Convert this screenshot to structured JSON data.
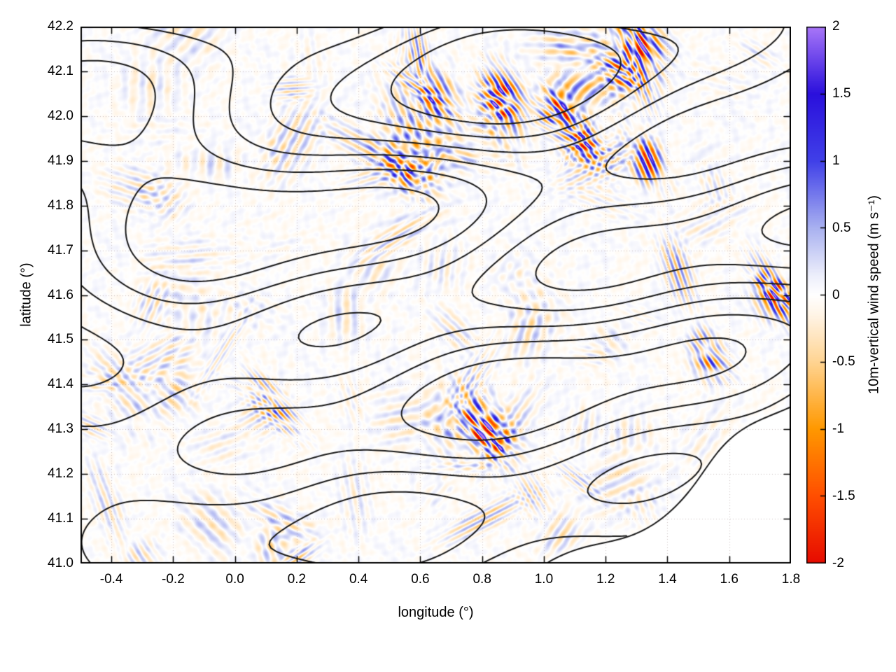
{
  "figure": {
    "background": "#ffffff"
  },
  "chart_data": {
    "type": "heatmap",
    "title": "",
    "xlabel": "longitude (°)",
    "ylabel": "latitude (°)",
    "xlim": [
      -0.5,
      1.8
    ],
    "ylim": [
      41.0,
      42.2
    ],
    "xtick_values": [
      -0.4,
      -0.2,
      0.0,
      0.2,
      0.4,
      0.6,
      0.8,
      1.0,
      1.2,
      1.4,
      1.6,
      1.8
    ],
    "xtick_labels": [
      "-0.4",
      "-0.2",
      "0.0",
      "0.2",
      "0.4",
      "0.6",
      "0.8",
      "1.0",
      "1.2",
      "1.4",
      "1.6",
      "1.8"
    ],
    "ytick_values": [
      41.0,
      41.1,
      41.2,
      41.3,
      41.4,
      41.5,
      41.6,
      41.7,
      41.8,
      41.9,
      42.0,
      42.1,
      42.2
    ],
    "ytick_labels": [
      "41.0",
      "41.1",
      "41.2",
      "41.3",
      "41.4",
      "41.5",
      "41.6",
      "41.7",
      "41.8",
      "41.9",
      "42.0",
      "42.1",
      "42.2"
    ],
    "grid": {
      "style": "dotted",
      "color": "#b9a4a4"
    },
    "contours": {
      "color": "#1a1a1a",
      "description": "black terrain/orography contour lines overlaid on shaded field"
    },
    "sea_region": {
      "location": "bottom-right",
      "color": "#ffffff",
      "description": "blank white area beyond the coastline contour"
    },
    "colorbar": {
      "label": "10m-vertical wind speed (m s⁻¹)",
      "min": -2,
      "max": 2,
      "tick_values": [
        2,
        1.5,
        1,
        0.5,
        0,
        -0.5,
        -1,
        -1.5,
        -2
      ],
      "tick_labels": [
        "2",
        "1.5",
        "1",
        "0.5",
        "0",
        "-0.5",
        "-1",
        "-1.5",
        "-2"
      ],
      "stops": [
        {
          "v": -2.0,
          "c": "#e60b00"
        },
        {
          "v": -1.5,
          "c": "#ff4e00"
        },
        {
          "v": -1.0,
          "c": "#ff9800"
        },
        {
          "v": -0.5,
          "c": "#ffd492"
        },
        {
          "v": -0.15,
          "c": "#fff4e6"
        },
        {
          "v": 0.0,
          "c": "#ffffff"
        },
        {
          "v": 0.15,
          "c": "#eceefb"
        },
        {
          "v": 0.5,
          "c": "#a9b1f0"
        },
        {
          "v": 1.0,
          "c": "#4040e8"
        },
        {
          "v": 1.5,
          "c": "#2a10dc"
        },
        {
          "v": 2.0,
          "c": "#a876f8"
        }
      ]
    },
    "features": [
      {
        "lon": 0.85,
        "lat": 42.04,
        "value": -1.9,
        "note": "strong downdraft streak"
      },
      {
        "lon": 0.62,
        "lat": 42.05,
        "value": -1.3,
        "note": "orange patch"
      },
      {
        "lon": 1.3,
        "lat": 42.17,
        "value": -1.8,
        "note": "red streak top-right"
      },
      {
        "lon": 1.27,
        "lat": 42.1,
        "value": 1.6,
        "note": "deep blue streak"
      },
      {
        "lon": 1.12,
        "lat": 41.95,
        "value": 1.2,
        "note": "blue band"
      },
      {
        "lon": 0.55,
        "lat": 41.9,
        "value": 1.1,
        "note": "blue patch"
      },
      {
        "lon": 0.8,
        "lat": 41.3,
        "value": -1.7,
        "note": "red arc"
      },
      {
        "lon": 1.75,
        "lat": 41.61,
        "value": -1.6,
        "note": "red spot at right edge"
      },
      {
        "lon": 1.52,
        "lat": 41.47,
        "value": -1.0,
        "note": "orange streaks"
      },
      {
        "lon": 1.05,
        "lat": 42.0,
        "value": -1.2,
        "note": "orange band"
      },
      {
        "lon": 0.15,
        "lat": 41.35,
        "value": -0.8,
        "note": "orange streaks SW"
      },
      {
        "lon": 1.35,
        "lat": 41.9,
        "value": -1.0,
        "note": "orange streaks E"
      }
    ]
  }
}
